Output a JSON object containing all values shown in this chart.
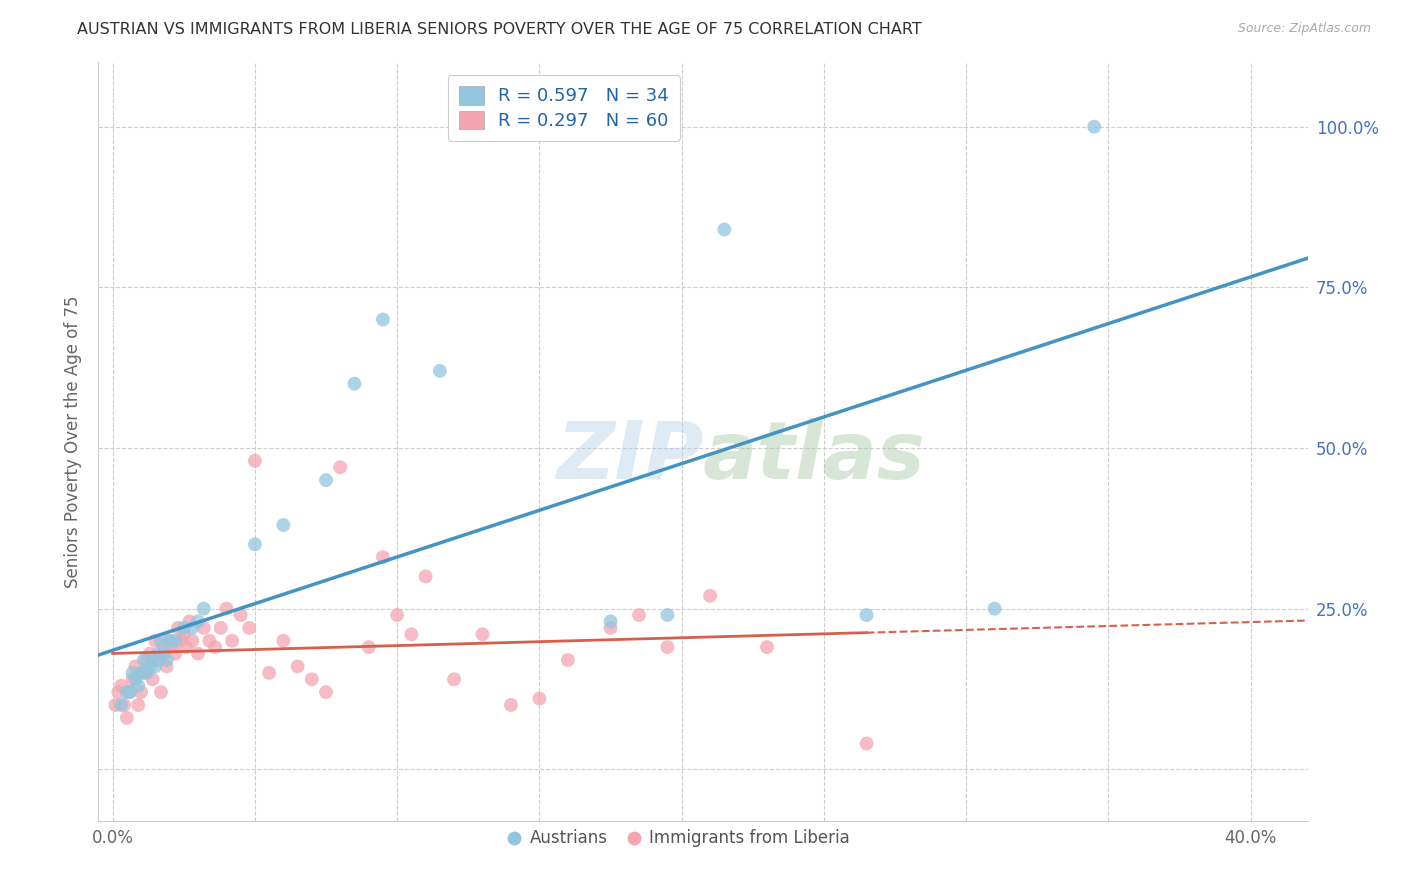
{
  "title": "AUSTRIAN VS IMMIGRANTS FROM LIBERIA SENIORS POVERTY OVER THE AGE OF 75 CORRELATION CHART",
  "source": "Source: ZipAtlas.com",
  "ylabel": "Seniors Poverty Over the Age of 75",
  "x_tick_positions": [
    0.0,
    0.05,
    0.1,
    0.15,
    0.2,
    0.25,
    0.3,
    0.35,
    0.4
  ],
  "x_tick_labels": [
    "0.0%",
    "",
    "",
    "",
    "",
    "",
    "",
    "",
    "40.0%"
  ],
  "y_tick_positions": [
    0.0,
    0.25,
    0.5,
    0.75,
    1.0
  ],
  "y_tick_labels": [
    "",
    "25.0%",
    "50.0%",
    "75.0%",
    "100.0%"
  ],
  "austrians_R": 0.597,
  "austrians_N": 34,
  "liberia_R": 0.297,
  "liberia_N": 60,
  "blue_color": "#92c5de",
  "pink_color": "#f4a5b0",
  "blue_line_color": "#4393c3",
  "pink_line_color": "#d6604d",
  "legend_text_color": "#2166ac",
  "background_color": "#ffffff",
  "xlim": [
    -0.005,
    0.42
  ],
  "ylim": [
    -0.08,
    1.1
  ],
  "austrians_x": [
    0.003,
    0.005,
    0.006,
    0.007,
    0.008,
    0.009,
    0.01,
    0.011,
    0.012,
    0.013,
    0.014,
    0.015,
    0.016,
    0.017,
    0.018,
    0.019,
    0.02,
    0.022,
    0.025,
    0.028,
    0.03,
    0.032,
    0.05,
    0.06,
    0.075,
    0.085,
    0.095,
    0.115,
    0.175,
    0.195,
    0.215,
    0.265,
    0.31,
    0.345
  ],
  "austrians_y": [
    0.1,
    0.12,
    0.12,
    0.15,
    0.14,
    0.13,
    0.15,
    0.17,
    0.15,
    0.16,
    0.17,
    0.16,
    0.18,
    0.2,
    0.18,
    0.17,
    0.2,
    0.2,
    0.22,
    0.22,
    0.23,
    0.25,
    0.35,
    0.38,
    0.45,
    0.6,
    0.7,
    0.62,
    0.23,
    0.24,
    0.84,
    0.24,
    0.25,
    1.0
  ],
  "liberia_x": [
    0.001,
    0.002,
    0.003,
    0.004,
    0.005,
    0.006,
    0.007,
    0.008,
    0.009,
    0.01,
    0.011,
    0.012,
    0.013,
    0.014,
    0.015,
    0.016,
    0.017,
    0.018,
    0.019,
    0.02,
    0.021,
    0.022,
    0.023,
    0.024,
    0.025,
    0.026,
    0.027,
    0.028,
    0.03,
    0.032,
    0.034,
    0.036,
    0.038,
    0.04,
    0.042,
    0.045,
    0.048,
    0.05,
    0.055,
    0.06,
    0.065,
    0.07,
    0.075,
    0.08,
    0.09,
    0.095,
    0.1,
    0.105,
    0.11,
    0.12,
    0.13,
    0.14,
    0.15,
    0.16,
    0.175,
    0.185,
    0.195,
    0.21,
    0.23,
    0.265
  ],
  "liberia_y": [
    0.1,
    0.12,
    0.13,
    0.1,
    0.08,
    0.12,
    0.14,
    0.16,
    0.1,
    0.12,
    0.15,
    0.17,
    0.18,
    0.14,
    0.2,
    0.17,
    0.12,
    0.19,
    0.16,
    0.2,
    0.19,
    0.18,
    0.22,
    0.2,
    0.21,
    0.19,
    0.23,
    0.2,
    0.18,
    0.22,
    0.2,
    0.19,
    0.22,
    0.25,
    0.2,
    0.24,
    0.22,
    0.48,
    0.15,
    0.2,
    0.16,
    0.14,
    0.12,
    0.47,
    0.19,
    0.33,
    0.24,
    0.21,
    0.3,
    0.14,
    0.21,
    0.1,
    0.11,
    0.17,
    0.22,
    0.24,
    0.19,
    0.27,
    0.19,
    0.04
  ]
}
